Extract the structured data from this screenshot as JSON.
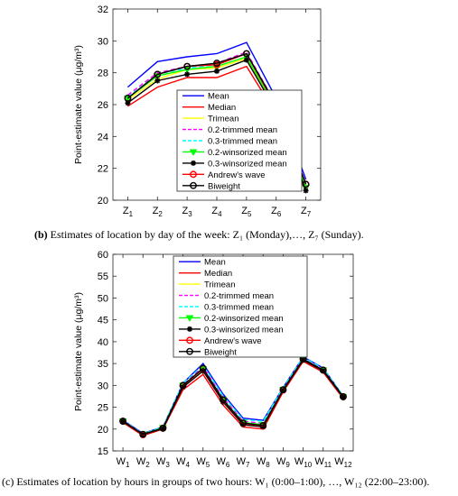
{
  "chart_data": [
    {
      "type": "line",
      "ylabel": "Point-estimate value (μg/m³)",
      "xlabel": "",
      "ylim": [
        20,
        32
      ],
      "yticks": [
        20,
        22,
        24,
        26,
        28,
        30,
        32
      ],
      "categories": [
        "Z1",
        "Z2",
        "Z3",
        "Z4",
        "Z5",
        "Z6",
        "Z7"
      ],
      "legend_position": "center",
      "series": [
        {
          "name": "Mean",
          "color": "#0000ff",
          "style": "solid",
          "marker": "none",
          "values": [
            27.1,
            28.7,
            29.0,
            29.2,
            29.9,
            26.4,
            21.3
          ]
        },
        {
          "name": "Median",
          "color": "#ff0000",
          "style": "solid",
          "marker": "none",
          "values": [
            25.9,
            27.1,
            27.7,
            27.7,
            28.4,
            25.4,
            20.5
          ]
        },
        {
          "name": "Trimean",
          "color": "#ffff00",
          "style": "solid",
          "marker": "none",
          "values": [
            26.3,
            27.6,
            28.2,
            28.3,
            28.9,
            25.8,
            20.8
          ]
        },
        {
          "name": "0.2-trimmed mean",
          "color": "#ff00ff",
          "style": "dashed",
          "marker": "none",
          "values": [
            26.6,
            28.0,
            28.4,
            28.6,
            29.3,
            26.0,
            21.0
          ]
        },
        {
          "name": "0.3-trimmed mean",
          "color": "#00ffff",
          "style": "dashed",
          "marker": "none",
          "values": [
            26.5,
            27.9,
            28.3,
            28.5,
            29.2,
            26.0,
            20.9
          ]
        },
        {
          "name": "0.2-winsorized mean",
          "color": "#00ff00",
          "style": "solid",
          "marker": "triangle",
          "values": [
            26.4,
            27.8,
            28.2,
            28.4,
            29.0,
            25.8,
            20.8
          ]
        },
        {
          "name": "0.3-winsorized mean",
          "color": "#000000",
          "style": "solid",
          "marker": "star",
          "values": [
            26.1,
            27.5,
            27.9,
            28.1,
            28.8,
            25.6,
            20.6
          ]
        },
        {
          "name": "Andrew's wave",
          "color": "#ff0000",
          "style": "solid",
          "marker": "circle",
          "values": [
            26.4,
            27.9,
            28.4,
            28.5,
            29.2,
            25.9,
            21.0
          ]
        },
        {
          "name": "Biweight",
          "color": "#000000",
          "style": "solid",
          "marker": "circle",
          "values": [
            26.4,
            27.9,
            28.4,
            28.6,
            29.2,
            26.0,
            21.0
          ]
        }
      ]
    },
    {
      "type": "line",
      "ylabel": "Point-estimate value (μg/m³)",
      "xlabel": "",
      "ylim": [
        15,
        60
      ],
      "yticks": [
        15,
        20,
        25,
        30,
        35,
        40,
        45,
        50,
        55,
        60
      ],
      "categories": [
        "W1",
        "W2",
        "W3",
        "W4",
        "W5",
        "W6",
        "W7",
        "W8",
        "W9",
        "W10",
        "W11",
        "W12"
      ],
      "legend_position": "top-center",
      "series": [
        {
          "name": "Mean",
          "color": "#0000ff",
          "style": "solid",
          "marker": "none",
          "values": [
            22.0,
            19.0,
            20.5,
            30.5,
            35.0,
            28.0,
            22.5,
            22.0,
            29.5,
            36.5,
            34.0,
            27.5
          ]
        },
        {
          "name": "Median",
          "color": "#ff0000",
          "style": "solid",
          "marker": "none",
          "values": [
            21.5,
            18.5,
            20.0,
            29.0,
            32.5,
            25.5,
            20.5,
            20.0,
            28.5,
            35.5,
            33.0,
            27.0
          ]
        },
        {
          "name": "Trimean",
          "color": "#ffff00",
          "style": "solid",
          "marker": "none",
          "values": [
            21.8,
            18.8,
            20.2,
            29.8,
            33.5,
            26.5,
            21.2,
            20.8,
            29.0,
            36.0,
            33.5,
            27.4
          ]
        },
        {
          "name": "0.2-trimmed mean",
          "color": "#ff00ff",
          "style": "dashed",
          "marker": "none",
          "values": [
            21.9,
            18.9,
            20.4,
            30.2,
            34.3,
            27.2,
            21.8,
            21.3,
            29.2,
            36.2,
            33.7,
            27.5
          ]
        },
        {
          "name": "0.3-trimmed mean",
          "color": "#00ffff",
          "style": "dashed",
          "marker": "none",
          "values": [
            21.9,
            18.9,
            20.5,
            30.5,
            34.6,
            27.6,
            22.2,
            21.8,
            29.4,
            36.4,
            33.9,
            27.6
          ]
        },
        {
          "name": "0.2-winsorized mean",
          "color": "#00ff00",
          "style": "solid",
          "marker": "triangle",
          "values": [
            21.8,
            18.8,
            20.3,
            30.0,
            33.8,
            26.8,
            21.5,
            21.0,
            29.0,
            36.0,
            33.5,
            27.4
          ]
        },
        {
          "name": "0.3-winsorized mean",
          "color": "#000000",
          "style": "solid",
          "marker": "star",
          "values": [
            21.7,
            18.7,
            20.1,
            29.6,
            33.3,
            26.2,
            21.0,
            20.5,
            28.8,
            35.8,
            33.3,
            27.3
          ]
        },
        {
          "name": "Andrew's wave",
          "color": "#ff0000",
          "style": "solid",
          "marker": "circle",
          "values": [
            21.8,
            18.7,
            20.2,
            29.9,
            33.8,
            26.6,
            21.3,
            20.7,
            28.9,
            36.0,
            33.5,
            27.4
          ]
        },
        {
          "name": "Biweight",
          "color": "#000000",
          "style": "solid",
          "marker": "circle",
          "values": [
            21.8,
            18.8,
            20.2,
            30.0,
            33.9,
            26.7,
            21.4,
            20.8,
            29.0,
            36.0,
            33.5,
            27.4
          ]
        }
      ]
    }
  ],
  "captions": [
    {
      "letter": "(b)",
      "text": "Estimates of location by day of the week: Z₁ (Monday),…, Z₇ (Sunday)."
    },
    {
      "letter": "(c)",
      "text": "Estimates of location by hours in groups of two hours: W₁ (0:00–1:00), …, W₁₂ (22:00–23:00)."
    }
  ]
}
